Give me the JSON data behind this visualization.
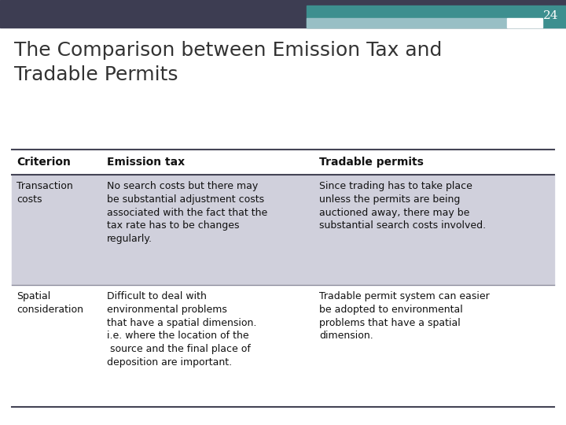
{
  "slide_number": "24",
  "title": "The Comparison between Emission Tax and\nTradable Permits",
  "top_bar_dark": "#3d3d52",
  "top_bar_teal": "#3d8f8f",
  "top_bar_light": "#98bfc5",
  "slide_bg": "#ffffff",
  "table": {
    "headers": [
      "Criterion",
      "Emission tax",
      "Tradable permits"
    ],
    "rows": [
      {
        "bg": "#d0d0dc",
        "cells": [
          "Transaction\ncosts",
          "No search costs but there may\nbe substantial adjustment costs\nassociated with the fact that the\ntax rate has to be changes\nregularly.",
          "Since trading has to take place\nunless the permits are being\nauctioned away, there may be\nsubstantial search costs involved."
        ]
      },
      {
        "bg": "#ffffff",
        "cells": [
          "Spatial\nconsideration",
          "Difficult to deal with\nenvironmental problems\nthat have a spatial dimension.\ni.e. where the location of the\n source and the final place of\ndeposition are important.",
          "Tradable permit system can easier\nbe adopted to environmental\nproblems that have a spatial\ndimension."
        ]
      }
    ]
  },
  "title_fontsize": 18,
  "table_header_fontsize": 10,
  "table_cell_fontsize": 9,
  "slide_number_fontsize": 11
}
